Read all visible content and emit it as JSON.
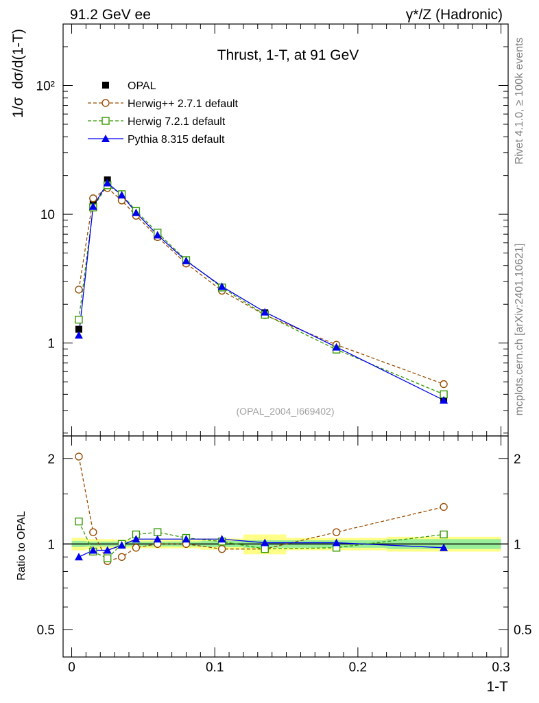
{
  "header": {
    "left_label": "91.2 GeV ee",
    "right_label": "γ*/Z (Hadronic)"
  },
  "side_labels": {
    "rivet": "Rivet 4.1.0, ≥ 100k events",
    "mcplots": "mcplots.cern.ch [arXiv:2401.10621]"
  },
  "chart_data": {
    "type": "line",
    "title": "Thrust, 1-T, at 91 GeV",
    "analysis_id": "(OPAL_2004_I669402)",
    "xlabel": "1-T",
    "ylabel": "1/σ  dσ/d(1-T)",
    "ratio_ylabel": "Ratio to OPAL",
    "xlim": [
      -0.006,
      0.305
    ],
    "ylim_main": [
      0.19,
      300
    ],
    "yscale_main": "log",
    "ylim_ratio": [
      0.4,
      2.4
    ],
    "yscale_ratio": "log",
    "x_ticks": [
      0,
      0.1,
      0.2,
      0.3
    ],
    "x_tick_labels": [
      "0",
      "0.1",
      "0.2",
      "0.3"
    ],
    "main_y_ticks": [
      1,
      10,
      100
    ],
    "main_y_tick_labels": [
      "1",
      "10",
      "10²"
    ],
    "ratio_y_ticks": [
      0.5,
      1,
      2
    ],
    "ratio_y_tick_labels": [
      "0.5",
      "1",
      "2"
    ],
    "legend_position": "top-left",
    "x": [
      0.005,
      0.015,
      0.025,
      0.035,
      0.045,
      0.06,
      0.08,
      0.105,
      0.135,
      0.185,
      0.26
    ],
    "data": {
      "name": "OPAL",
      "values": [
        1.28,
        12.0,
        18.5,
        14.2,
        10.0,
        6.7,
        4.2,
        2.65,
        1.72,
        0.92,
        0.37
      ]
    },
    "data_band": {
      "x_edges": [
        [
          0,
          0.01
        ],
        [
          0.01,
          0.02
        ],
        [
          0.02,
          0.03
        ],
        [
          0.03,
          0.04
        ],
        [
          0.04,
          0.05
        ],
        [
          0.05,
          0.07
        ],
        [
          0.07,
          0.09
        ],
        [
          0.09,
          0.12
        ],
        [
          0.12,
          0.15
        ],
        [
          0.15,
          0.22
        ],
        [
          0.22,
          0.3
        ]
      ],
      "stat_half_width": [
        0.025,
        0.02,
        0.02,
        0.02,
        0.02,
        0.02,
        0.02,
        0.025,
        0.03,
        0.03,
        0.04
      ],
      "total_half_width": [
        0.05,
        0.04,
        0.04,
        0.035,
        0.035,
        0.035,
        0.035,
        0.045,
        0.08,
        0.05,
        0.06
      ]
    },
    "series": [
      {
        "name": "Herwig++ 2.7.1 default",
        "color": "#994c00",
        "marker": "circle",
        "dash": "dashed",
        "values": [
          2.6,
          13.3,
          16.0,
          12.8,
          9.75,
          6.65,
          4.15,
          2.55,
          1.65,
          0.97,
          0.48
        ],
        "ratio": [
          2.03,
          1.1,
          0.87,
          0.9,
          0.97,
          1.0,
          1.0,
          0.96,
          0.96,
          1.1,
          1.35
        ]
      },
      {
        "name": "Herwig 7.2.1 default",
        "color": "#339900",
        "marker": "square",
        "dash": "dashed",
        "values": [
          1.52,
          11.3,
          16.8,
          14.3,
          10.6,
          7.2,
          4.4,
          2.7,
          1.66,
          0.89,
          0.4
        ],
        "ratio": [
          1.2,
          0.94,
          0.89,
          1.0,
          1.08,
          1.1,
          1.05,
          1.02,
          0.96,
          0.97,
          1.08
        ]
      },
      {
        "name": "Pythia 8.315 default",
        "color": "#0000ee",
        "marker": "triangle",
        "dash": "solid",
        "values": [
          1.15,
          11.5,
          17.5,
          14.1,
          10.3,
          6.9,
          4.35,
          2.75,
          1.74,
          0.93,
          0.36
        ],
        "ratio": [
          0.9,
          0.95,
          0.95,
          0.99,
          1.04,
          1.04,
          1.04,
          1.04,
          1.01,
          1.01,
          0.97
        ]
      }
    ]
  }
}
